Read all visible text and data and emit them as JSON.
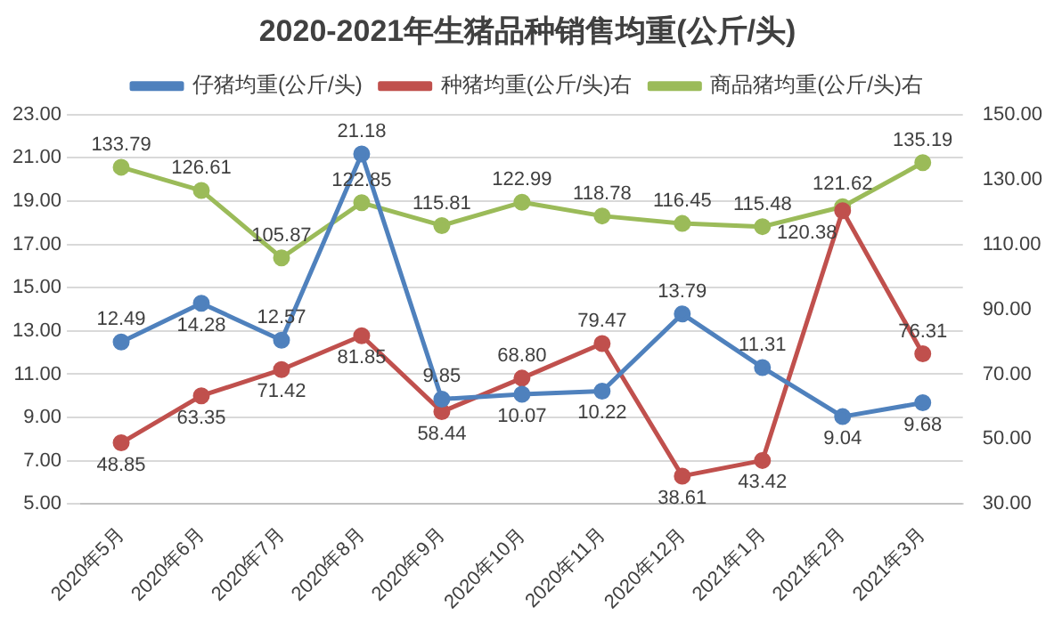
{
  "chart_data": {
    "type": "line",
    "title": "2020-2021年生猪品种销售均重(公斤/头)",
    "categories": [
      "2020年5月",
      "2020年6月",
      "2020年7月",
      "2020年8月",
      "2020年9月",
      "2020年10月",
      "2020年11月",
      "2020年12月",
      "2021年1月",
      "2021年2月",
      "2021年3月"
    ],
    "series": [
      {
        "name": "仔猪均重(公斤/头)",
        "color": "#4f81bd",
        "values": [
          12.49,
          14.28,
          12.57,
          21.18,
          9.85,
          10.07,
          10.22,
          13.79,
          11.31,
          9.04,
          9.68
        ],
        "value_labels": [
          "12.49",
          "14.28",
          "12.57",
          "21.18",
          "9.85",
          "10.07",
          "10.22",
          "13.79",
          "11.31",
          "9.04",
          "9.68"
        ]
      },
      {
        "name": "种猪均重(公斤/头)右",
        "color": "#c0504d",
        "axis": "y2",
        "values": [
          48.85,
          63.35,
          71.42,
          81.85,
          58.44,
          68.8,
          79.47,
          38.61,
          43.42,
          120.38,
          76.31
        ],
        "value_labels": [
          "48.85",
          "63.35",
          "71.42",
          "81.85",
          "58.44",
          "68.80",
          "79.47",
          "38.61",
          "43.42",
          "120.38",
          "76.31"
        ]
      },
      {
        "name": "商品猪均重(公斤/头)右",
        "color": "#9bbb59",
        "axis": "y2",
        "values": [
          133.79,
          126.61,
          105.87,
          122.85,
          115.81,
          122.99,
          118.78,
          116.45,
          115.48,
          121.62,
          135.19
        ],
        "value_labels": [
          "133.79",
          "126.61",
          "105.87",
          "122.85",
          "115.81",
          "122.99",
          "118.78",
          "116.45",
          "115.48",
          "121.62",
          "135.19"
        ]
      }
    ],
    "ylim": [
      5,
      23
    ],
    "yticks": [
      {
        "value": 5,
        "label": "5.00"
      },
      {
        "value": 7,
        "label": "7.00"
      },
      {
        "value": 9,
        "label": "9.00"
      },
      {
        "value": 11,
        "label": "11.00"
      },
      {
        "value": 13,
        "label": "13.00"
      },
      {
        "value": 15,
        "label": "15.00"
      },
      {
        "value": 17,
        "label": "17.00"
      },
      {
        "value": 19,
        "label": "19.00"
      },
      {
        "value": 21,
        "label": "21.00"
      },
      {
        "value": 23,
        "label": "23.00"
      }
    ],
    "y2lim": [
      30,
      150
    ],
    "y2ticks": [
      {
        "value": 30,
        "label": "30.00"
      },
      {
        "value": 50,
        "label": "50.00"
      },
      {
        "value": 70,
        "label": "70.00"
      },
      {
        "value": 90,
        "label": "90.00"
      },
      {
        "value": 110,
        "label": "110.00"
      },
      {
        "value": 130,
        "label": "130.00"
      },
      {
        "value": 150,
        "label": "150.00"
      }
    ],
    "grid": "y",
    "legend": "top",
    "marker": "circle",
    "line_style": "solid"
  }
}
